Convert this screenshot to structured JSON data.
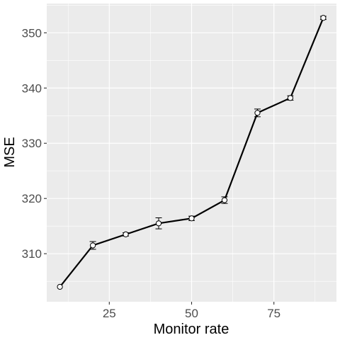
{
  "chart_data": {
    "type": "line",
    "title": "",
    "xlabel": "Monitor rate",
    "ylabel": "MSE",
    "xlim": [
      6,
      94
    ],
    "ylim": [
      301.3,
      355.3
    ],
    "x_ticks": [
      25,
      50,
      75
    ],
    "y_ticks": [
      310,
      320,
      330,
      340,
      350
    ],
    "grid": true,
    "legend": "none",
    "series": [
      {
        "x": [
          10,
          20,
          30,
          40,
          50,
          60,
          70,
          80,
          90
        ],
        "y": [
          304.0,
          311.5,
          313.5,
          315.5,
          316.4,
          319.7,
          335.5,
          338.2,
          352.7
        ],
        "err": [
          0,
          0.7,
          0.3,
          1.0,
          0.4,
          0.6,
          0.7,
          0.4,
          0.3
        ]
      }
    ],
    "colors": {
      "panel": "#ebebeb",
      "grid": "#ffffff",
      "line": "#000000",
      "point_fill": "#ffffff"
    }
  }
}
